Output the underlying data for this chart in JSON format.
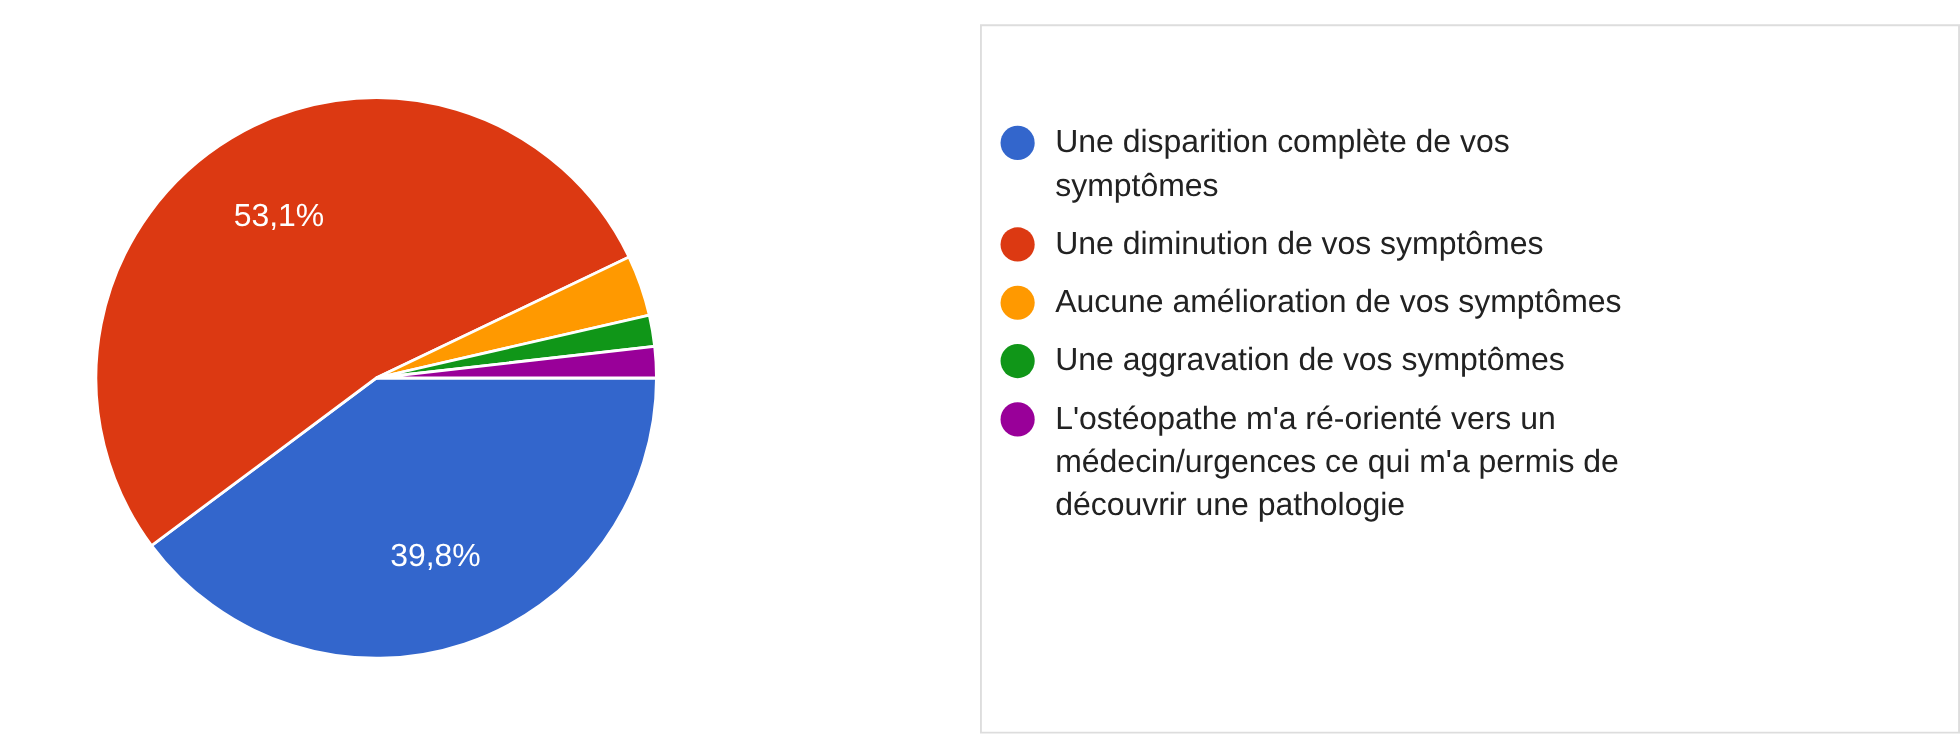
{
  "chart_data": {
    "type": "pie",
    "categories": [
      "Une disparition complète de vos symptômes",
      "Une diminution de vos symptômes",
      "Aucune amélioration de vos symptômes",
      "Une aggravation de vos symptômes",
      "L'ostéopathe m'a ré-orienté vers un médecin/urgences ce qui m'a permis de découvrir une pathologie"
    ],
    "values": [
      39.8,
      53.1,
      3.5,
      1.8,
      1.8
    ],
    "colors": [
      "#3366cc",
      "#dc3912",
      "#ff9900",
      "#109618",
      "#990099"
    ],
    "value_labels": [
      "39,8%",
      "53,1%",
      null,
      null,
      null
    ],
    "legend": "right"
  }
}
